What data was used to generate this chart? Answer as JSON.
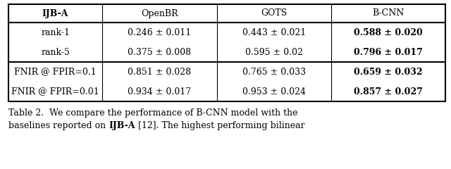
{
  "headers": [
    "IJB-A",
    "OpenBR",
    "GOTS",
    "B-CNN"
  ],
  "header_bold": [
    true,
    false,
    false,
    false
  ],
  "rows": [
    {
      "label": "rank-1",
      "values": [
        "0.246 ± 0.011",
        "0.443 ± 0.021",
        "0.588 ± 0.020"
      ],
      "values_bold": [
        false,
        false,
        true
      ],
      "group": 0
    },
    {
      "label": "rank-5",
      "values": [
        "0.375 ± 0.008",
        "0.595 ± 0.02",
        "0.796 ± 0.017"
      ],
      "values_bold": [
        false,
        false,
        true
      ],
      "group": 0
    },
    {
      "label": "FNIR @ FPIR=0.1",
      "values": [
        "0.851 ± 0.028",
        "0.765 ± 0.033",
        "0.659 ± 0.032"
      ],
      "values_bold": [
        false,
        false,
        true
      ],
      "group": 1
    },
    {
      "label": "FNIR @ FPIR=0.01",
      "values": [
        "0.934 ± 0.017",
        "0.953 ± 0.024",
        "0.857 ± 0.027"
      ],
      "values_bold": [
        false,
        false,
        true
      ],
      "group": 1
    }
  ],
  "caption_line1": "Table 2.  We compare the performance of B-CNN model with the",
  "caption_line2_pre": "baselines reported on ",
  "caption_line2_bold": "IJB-A",
  "caption_line2_post": " [12]. The highest performing bilinear",
  "fig_width": 6.4,
  "fig_height": 2.4,
  "font_size": 9.0,
  "caption_font_size": 9.0,
  "bg_color": "#ffffff",
  "line_color": "#000000"
}
